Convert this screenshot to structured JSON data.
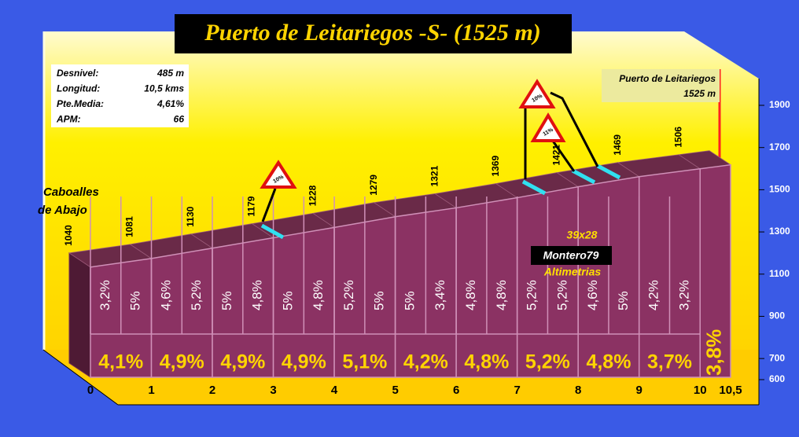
{
  "chart_data": {
    "type": "profile",
    "title": "Puerto de Leitariegos -S- (1525 m)",
    "info": [
      [
        "Desnivel:",
        "485 m"
      ],
      [
        "Longitud:",
        "10,5 kms"
      ],
      [
        "Pte.Media:",
        "4,61%"
      ],
      [
        "APM:",
        "66"
      ]
    ],
    "start_label": [
      "Caboalles",
      "de Abajo"
    ],
    "summit_label": [
      "Puerto de Leitariegos",
      "1525 m"
    ],
    "credits": [
      "39x28",
      "Montero79",
      "Altimetrias"
    ],
    "signs": [
      "10%",
      "10%",
      "11%"
    ],
    "x": [
      0,
      1,
      2,
      3,
      4,
      5,
      6,
      7,
      8,
      9,
      10,
      10.5
    ],
    "altitudes": [
      1040,
      1081,
      1130,
      1179,
      1228,
      1279,
      1321,
      1369,
      1421,
      1469,
      1506,
      1525
    ],
    "km_gradients": {
      "values": [
        4.1,
        4.9,
        4.9,
        4.9,
        5.1,
        4.2,
        4.8,
        5.2,
        4.8,
        3.7,
        3.8
      ],
      "value_labels": [
        "4,1%",
        "4,9%",
        "4,9%",
        "4,9%",
        "5,1%",
        "4,2%",
        "4,8%",
        "5,2%",
        "4,8%",
        "3,7%",
        "3,8%"
      ]
    },
    "segment_gradients": {
      "x": [
        0,
        0.5,
        1,
        1.5,
        2,
        2.5,
        3,
        3.5,
        4,
        4.5,
        5,
        5.5,
        6,
        6.5,
        7,
        7.5,
        8,
        8.5,
        9,
        9.5
      ],
      "values": [
        3.2,
        5,
        4.6,
        5.2,
        5,
        4.8,
        5,
        4.8,
        5.2,
        5,
        5,
        3.4,
        4.8,
        4.8,
        5.2,
        5.2,
        4.6,
        5,
        4.2,
        3.2
      ],
      "value_labels": [
        "3,2%",
        "5%",
        "4,6%",
        "5,2%",
        "5%",
        "4,8%",
        "5%",
        "4,8%",
        "5,2%",
        "5%",
        "5%",
        "3,4%",
        "4,8%",
        "4,8%",
        "5,2%",
        "5,2%",
        "4,6%",
        "5%",
        "4,2%",
        "3,2%"
      ]
    },
    "xlim": [
      0,
      10.5
    ],
    "xticks": [
      0,
      1,
      2,
      3,
      4,
      5,
      6,
      7,
      8,
      9,
      10,
      {
        "value": 10.5,
        "label": "10,5"
      }
    ],
    "ylim": [
      600,
      1900
    ],
    "yticks": [
      600,
      700,
      900,
      1100,
      1300,
      1500,
      1700,
      1900
    ],
    "color": "#8b3263"
  }
}
